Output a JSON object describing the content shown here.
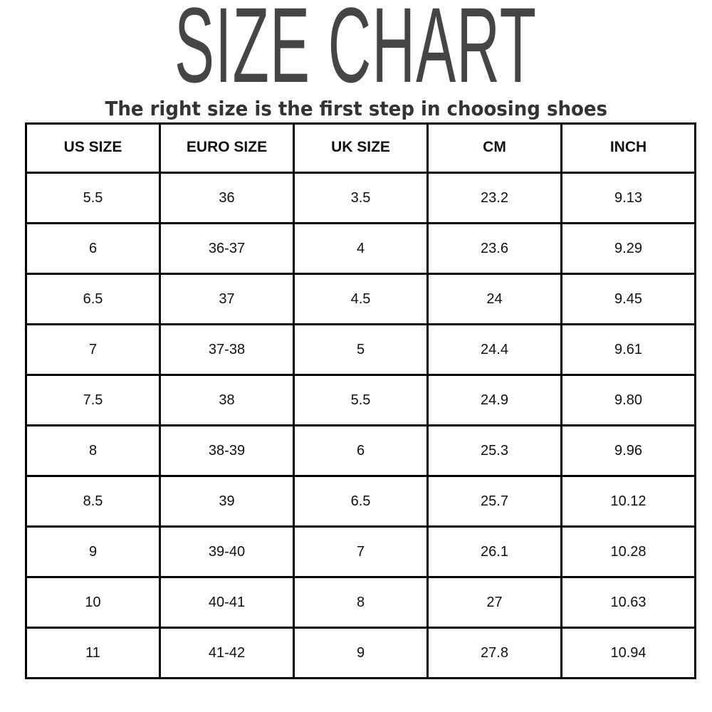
{
  "title": "SIZE CHART",
  "subtitle": "The right size is the first step in choosing shoes",
  "table": {
    "headers": [
      "US SIZE",
      "EURO SIZE",
      "UK SIZE",
      "CM",
      "INCH"
    ],
    "rows": [
      [
        "5.5",
        "36",
        "3.5",
        "23.2",
        "9.13"
      ],
      [
        "6",
        "36-37",
        "4",
        "23.6",
        "9.29"
      ],
      [
        "6.5",
        "37",
        "4.5",
        "24",
        "9.45"
      ],
      [
        "7",
        "37-38",
        "5",
        "24.4",
        "9.61"
      ],
      [
        "7.5",
        "38",
        "5.5",
        "24.9",
        "9.80"
      ],
      [
        "8",
        "38-39",
        "6",
        "25.3",
        "9.96"
      ],
      [
        "8.5",
        "39",
        "6.5",
        "25.7",
        "10.12"
      ],
      [
        "9",
        "39-40",
        "7",
        "26.1",
        "10.28"
      ],
      [
        "10",
        "40-41",
        "8",
        "27",
        "10.63"
      ],
      [
        "11",
        "41-42",
        "9",
        "27.8",
        "10.94"
      ]
    ]
  }
}
